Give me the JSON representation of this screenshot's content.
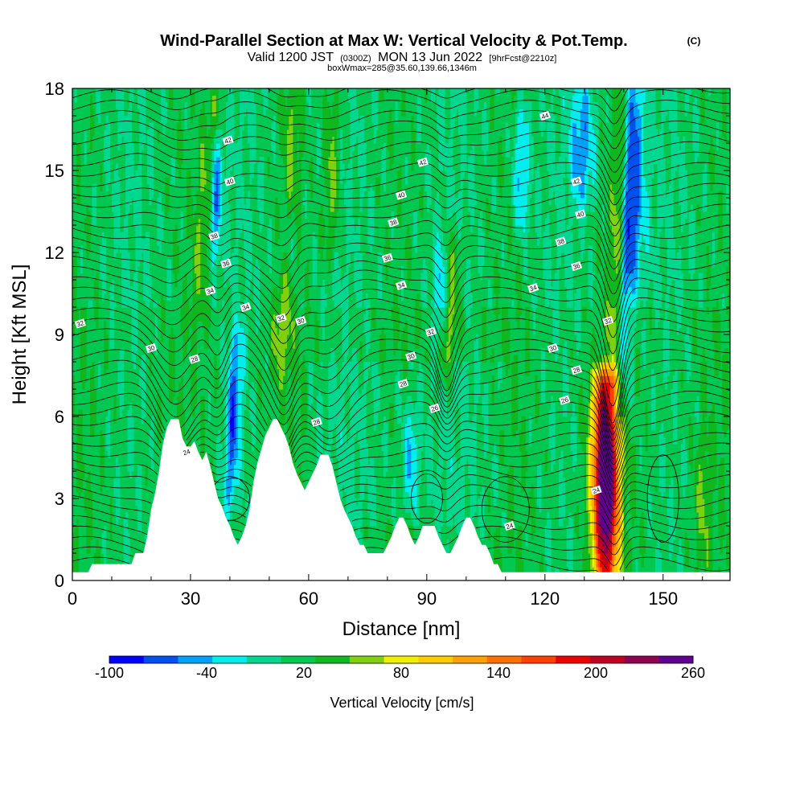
{
  "title": {
    "main": "Wind-Parallel Section at Max W: Vertical Velocity & Pot.Temp.",
    "copyright": "(C)",
    "valid_prefix": "Valid 1200 JST",
    "valid_utc": "(0300Z)",
    "valid_date": "MON 13 Jun 2022",
    "forecast": "[9hrFcst@2210z]",
    "box": "boxWmax=285@35.60,139.66,1346m"
  },
  "chart_data": {
    "type": "heatmap",
    "xlabel": "Distance [nm]",
    "ylabel": "Height [Kft MSL]",
    "xlim": [
      0,
      167
    ],
    "ylim": [
      0,
      18
    ],
    "xticks": [
      0,
      30,
      60,
      90,
      120,
      150
    ],
    "yticks": [
      0,
      3,
      6,
      9,
      12,
      15,
      18
    ],
    "xtick_labels": [
      "0",
      "30",
      "60",
      "90",
      "120",
      "150"
    ],
    "ytick_labels": [
      "0",
      "3",
      "6",
      "9",
      "12",
      "15",
      "18"
    ],
    "colorbar": {
      "title": "Vertical Velocity [cm/s]",
      "min": -100,
      "max": 260,
      "labels": [
        "-100",
        "-40",
        "20",
        "80",
        "140",
        "200",
        "260"
      ],
      "label_values": [
        -100,
        -40,
        20,
        80,
        140,
        200,
        260
      ],
      "colors": [
        "#0000ff",
        "#0050f0",
        "#00a0ff",
        "#00eeee",
        "#00d890",
        "#00c850",
        "#10b820",
        "#80d010",
        "#f0f000",
        "#ffcc00",
        "#ffa000",
        "#ff7000",
        "#ff4000",
        "#ee0000",
        "#c00020",
        "#900050",
        "#600090"
      ]
    },
    "terrain": [
      [
        0,
        0.3
      ],
      [
        4,
        0.3
      ],
      [
        5,
        0.6
      ],
      [
        15,
        0.6
      ],
      [
        16,
        1.0
      ],
      [
        18,
        1.0
      ],
      [
        19,
        1.6
      ],
      [
        20,
        2.6
      ],
      [
        21,
        3.2
      ],
      [
        22,
        4.0
      ],
      [
        23,
        5.0
      ],
      [
        24,
        5.6
      ],
      [
        25,
        5.9
      ],
      [
        26,
        5.9
      ],
      [
        27,
        5.9
      ],
      [
        28,
        5.2
      ],
      [
        29,
        4.9
      ],
      [
        30,
        4.9
      ],
      [
        31,
        5.1
      ],
      [
        32,
        4.7
      ],
      [
        33,
        4.4
      ],
      [
        34,
        4.7
      ],
      [
        35,
        4.2
      ],
      [
        36,
        3.6
      ],
      [
        37,
        3.0
      ],
      [
        38,
        2.7
      ],
      [
        39,
        2.3
      ],
      [
        40,
        2.0
      ],
      [
        41,
        1.6
      ],
      [
        42,
        1.3
      ],
      [
        43,
        1.6
      ],
      [
        44,
        2.0
      ],
      [
        45,
        2.6
      ],
      [
        46,
        3.6
      ],
      [
        47,
        4.3
      ],
      [
        48,
        4.8
      ],
      [
        49,
        5.3
      ],
      [
        50,
        5.6
      ],
      [
        51,
        5.9
      ],
      [
        52,
        5.9
      ],
      [
        53,
        5.6
      ],
      [
        54,
        5.3
      ],
      [
        55,
        4.9
      ],
      [
        56,
        4.3
      ],
      [
        57,
        3.9
      ],
      [
        58,
        3.6
      ],
      [
        59,
        3.3
      ],
      [
        60,
        3.6
      ],
      [
        61,
        3.9
      ],
      [
        62,
        4.2
      ],
      [
        63,
        4.6
      ],
      [
        64,
        4.6
      ],
      [
        65,
        4.6
      ],
      [
        66,
        4.2
      ],
      [
        67,
        3.6
      ],
      [
        68,
        3.0
      ],
      [
        69,
        2.6
      ],
      [
        70,
        2.3
      ],
      [
        71,
        2.0
      ],
      [
        72,
        1.6
      ],
      [
        73,
        1.3
      ],
      [
        74,
        1.3
      ],
      [
        75,
        1.0
      ],
      [
        76,
        1.0
      ],
      [
        77,
        1.0
      ],
      [
        78,
        1.0
      ],
      [
        79,
        1.0
      ],
      [
        80,
        1.3
      ],
      [
        81,
        1.6
      ],
      [
        82,
        2.0
      ],
      [
        83,
        2.3
      ],
      [
        84,
        2.3
      ],
      [
        85,
        2.0
      ],
      [
        86,
        1.6
      ],
      [
        87,
        1.3
      ],
      [
        88,
        1.6
      ],
      [
        89,
        2.0
      ],
      [
        90,
        2.0
      ],
      [
        91,
        2.0
      ],
      [
        92,
        2.0
      ],
      [
        93,
        1.6
      ],
      [
        94,
        1.3
      ],
      [
        95,
        1.0
      ],
      [
        96,
        1.0
      ],
      [
        97,
        1.3
      ],
      [
        98,
        1.6
      ],
      [
        99,
        2.0
      ],
      [
        100,
        2.3
      ],
      [
        101,
        2.3
      ],
      [
        102,
        2.0
      ],
      [
        103,
        1.6
      ],
      [
        104,
        1.3
      ],
      [
        105,
        1.3
      ],
      [
        106,
        1.0
      ],
      [
        107,
        0.6
      ],
      [
        108,
        0.6
      ],
      [
        109,
        0.3
      ],
      [
        110,
        0.3
      ],
      [
        167,
        0.3
      ]
    ],
    "updrafts": [
      {
        "x": 135.4,
        "y0": 0.2,
        "y1": 7.3,
        "w_peak": 285,
        "width": 3.2,
        "tilt": 0.0
      },
      {
        "x": 137.5,
        "y0": 7.0,
        "y1": 18.0,
        "w_peak": 90,
        "width": 2.2,
        "tilt": 0.25
      },
      {
        "x": 95.0,
        "y0": 7.5,
        "y1": 12.5,
        "w_peak": 65,
        "width": 2.5,
        "tilt": 0.3
      },
      {
        "x": 53.0,
        "y0": 7.5,
        "y1": 11.0,
        "w_peak": 55,
        "width": 2.5,
        "tilt": 0.2
      },
      {
        "x": 32.0,
        "y0": 10.0,
        "y1": 18.0,
        "w_peak": 55,
        "width": 2.5,
        "tilt": 0.5
      },
      {
        "x": 65.5,
        "y0": 12.0,
        "y1": 18.0,
        "w_peak": 60,
        "width": 2.0,
        "tilt": 0.1
      },
      {
        "x": 55.5,
        "y0": 14.0,
        "y1": 18.0,
        "w_peak": 50,
        "width": 2.0,
        "tilt": 0.0
      },
      {
        "x": 160.0,
        "y0": 0.5,
        "y1": 5.0,
        "w_peak": 45,
        "width": 2.0,
        "tilt": 0.0
      }
    ],
    "downdrafts": [
      {
        "x": 139.0,
        "y0": 6.5,
        "y1": 18.0,
        "w_min": -75,
        "width": 2.3,
        "tilt": 0.25
      },
      {
        "x": 40.0,
        "y0": 3.0,
        "y1": 9.0,
        "w_min": -70,
        "width": 1.8,
        "tilt": 0.3
      },
      {
        "x": 36.0,
        "y0": 12.0,
        "y1": 16.0,
        "w_min": -65,
        "width": 1.6,
        "tilt": 0.2
      },
      {
        "x": 86.0,
        "y0": 3.0,
        "y1": 6.0,
        "w_min": -40,
        "width": 2.0,
        "tilt": 0.0
      },
      {
        "x": 93.5,
        "y0": 9.0,
        "y1": 12.0,
        "w_min": -50,
        "width": 1.6,
        "tilt": 0.0
      },
      {
        "x": 129.5,
        "y0": 14.0,
        "y1": 18.0,
        "w_min": -50,
        "width": 3.0,
        "tilt": 0.0
      },
      {
        "x": 143.0,
        "y0": 11.0,
        "y1": 18.0,
        "w_min": -40,
        "width": 3.0,
        "tilt": 0.0
      },
      {
        "x": 114.0,
        "y0": 13.0,
        "y1": 17.0,
        "w_min": -45,
        "width": 2.0,
        "tilt": 0.0
      }
    ],
    "contour_labels": [
      {
        "text": "32",
        "x": 2,
        "y": 9.4
      },
      {
        "text": "30",
        "x": 20,
        "y": 8.5
      },
      {
        "text": "28",
        "x": 31,
        "y": 8.1
      },
      {
        "text": "34",
        "x": 35,
        "y": 10.6
      },
      {
        "text": "36",
        "x": 39,
        "y": 11.6
      },
      {
        "text": "38",
        "x": 36,
        "y": 12.6
      },
      {
        "text": "40",
        "x": 40,
        "y": 14.6
      },
      {
        "text": "42",
        "x": 39.5,
        "y": 16.1
      },
      {
        "text": "34",
        "x": 44,
        "y": 10.0
      },
      {
        "text": "32",
        "x": 53,
        "y": 9.6
      },
      {
        "text": "30",
        "x": 58,
        "y": 9.5
      },
      {
        "text": "28",
        "x": 62,
        "y": 5.8
      },
      {
        "text": "36",
        "x": 80,
        "y": 11.8
      },
      {
        "text": "38",
        "x": 81.5,
        "y": 13.1
      },
      {
        "text": "40",
        "x": 83.5,
        "y": 14.1
      },
      {
        "text": "42",
        "x": 89,
        "y": 15.3
      },
      {
        "text": "34",
        "x": 83.5,
        "y": 10.8
      },
      {
        "text": "32",
        "x": 91,
        "y": 9.1
      },
      {
        "text": "30",
        "x": 86,
        "y": 8.2
      },
      {
        "text": "28",
        "x": 84,
        "y": 7.2
      },
      {
        "text": "26",
        "x": 92,
        "y": 6.3
      },
      {
        "text": "24",
        "x": 29,
        "y": 4.7
      },
      {
        "text": "24",
        "x": 133,
        "y": 3.3
      },
      {
        "text": "24",
        "x": 111,
        "y": 2.0
      },
      {
        "text": "44",
        "x": 120,
        "y": 17.0
      },
      {
        "text": "42",
        "x": 128,
        "y": 14.6
      },
      {
        "text": "40",
        "x": 129,
        "y": 13.4
      },
      {
        "text": "38",
        "x": 124,
        "y": 12.4
      },
      {
        "text": "36",
        "x": 128,
        "y": 11.5
      },
      {
        "text": "34",
        "x": 117,
        "y": 10.7
      },
      {
        "text": "32",
        "x": 136,
        "y": 9.5
      },
      {
        "text": "30",
        "x": 122,
        "y": 8.5
      },
      {
        "text": "28",
        "x": 128,
        "y": 7.7
      },
      {
        "text": "26",
        "x": 125,
        "y": 6.6
      }
    ]
  }
}
